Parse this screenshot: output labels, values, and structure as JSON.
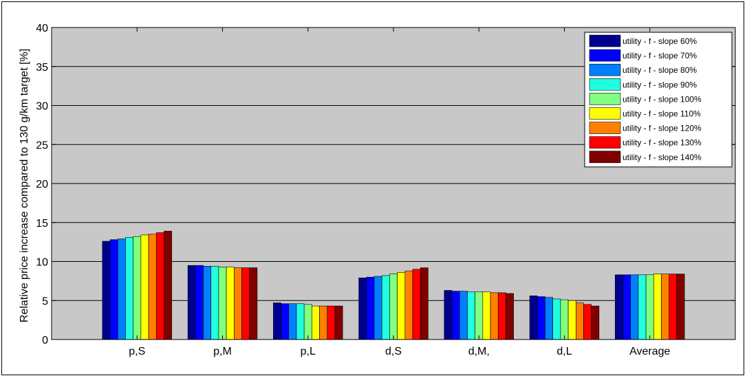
{
  "chart_data": {
    "type": "bar",
    "title": "",
    "xlabel": "",
    "ylabel": "Relative price increase compared to 130 g/km target [%]",
    "ylim": [
      0,
      40
    ],
    "yticks": [
      0,
      5,
      10,
      15,
      20,
      25,
      30,
      35,
      40
    ],
    "grid": "horizontal",
    "legend_position": "top-right",
    "categories": [
      "p,S",
      "p,M",
      "p,L",
      "d,S",
      "d,M,",
      "d,L",
      "Average"
    ],
    "series": [
      {
        "name": "utility - f - slope 60%",
        "color": "#00008f",
        "values": [
          12.6,
          9.5,
          4.7,
          7.9,
          6.3,
          5.6,
          8.3
        ]
      },
      {
        "name": "utility - f - slope 70%",
        "color": "#0000ff",
        "values": [
          12.8,
          9.5,
          4.6,
          8.0,
          6.2,
          5.5,
          8.3
        ]
      },
      {
        "name": "utility - f - slope 80%",
        "color": "#0080ff",
        "values": [
          12.9,
          9.4,
          4.6,
          8.1,
          6.2,
          5.4,
          8.3
        ]
      },
      {
        "name": "utility - f - slope 90%",
        "color": "#20ffdf",
        "values": [
          13.1,
          9.4,
          4.6,
          8.2,
          6.1,
          5.2,
          8.3
        ]
      },
      {
        "name": "utility - f - slope 100%",
        "color": "#80ff80",
        "values": [
          13.2,
          9.3,
          4.5,
          8.4,
          6.1,
          5.1,
          8.3
        ]
      },
      {
        "name": "utility - f - slope 110%",
        "color": "#ffff00",
        "values": [
          13.4,
          9.3,
          4.3,
          8.6,
          6.1,
          5.0,
          8.4
        ]
      },
      {
        "name": "utility - f - slope 120%",
        "color": "#ff8000",
        "values": [
          13.5,
          9.2,
          4.3,
          8.8,
          6.0,
          4.7,
          8.4
        ]
      },
      {
        "name": "utility - f - slope 130%",
        "color": "#ff0000",
        "values": [
          13.7,
          9.2,
          4.3,
          9.0,
          6.0,
          4.5,
          8.4
        ]
      },
      {
        "name": "utility - f - slope 140%",
        "color": "#800000",
        "values": [
          13.9,
          9.2,
          4.3,
          9.2,
          5.9,
          4.3,
          8.4
        ]
      }
    ]
  }
}
